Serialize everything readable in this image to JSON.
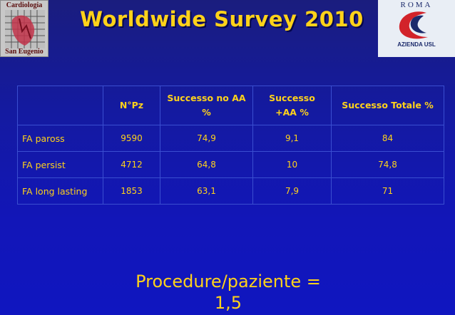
{
  "logo_left": {
    "top_text": "Cardiologia",
    "bottom_text": "San Eugenio"
  },
  "logo_right": {
    "top_text": "ROMA",
    "bottom_text": "AZIENDA USL"
  },
  "title": "Worldwide Survey 2010",
  "table": {
    "headers": [
      "",
      "N°Pz",
      "Successo no AA %",
      "Successo +AA %",
      "Successo Totale %"
    ],
    "rows": [
      [
        "FA paross",
        "9590",
        "74,9",
        "9,1",
        "84"
      ],
      [
        "FA persist",
        "4712",
        "64,8",
        "10",
        "74,8"
      ],
      [
        "FA long lasting",
        "1853",
        "63,1",
        "7,9",
        "71"
      ]
    ]
  },
  "footer": {
    "line1": "Procedure/paziente =",
    "line2": "1,5"
  },
  "colors": {
    "background": "#1216b8",
    "text": "#ffd21a"
  }
}
